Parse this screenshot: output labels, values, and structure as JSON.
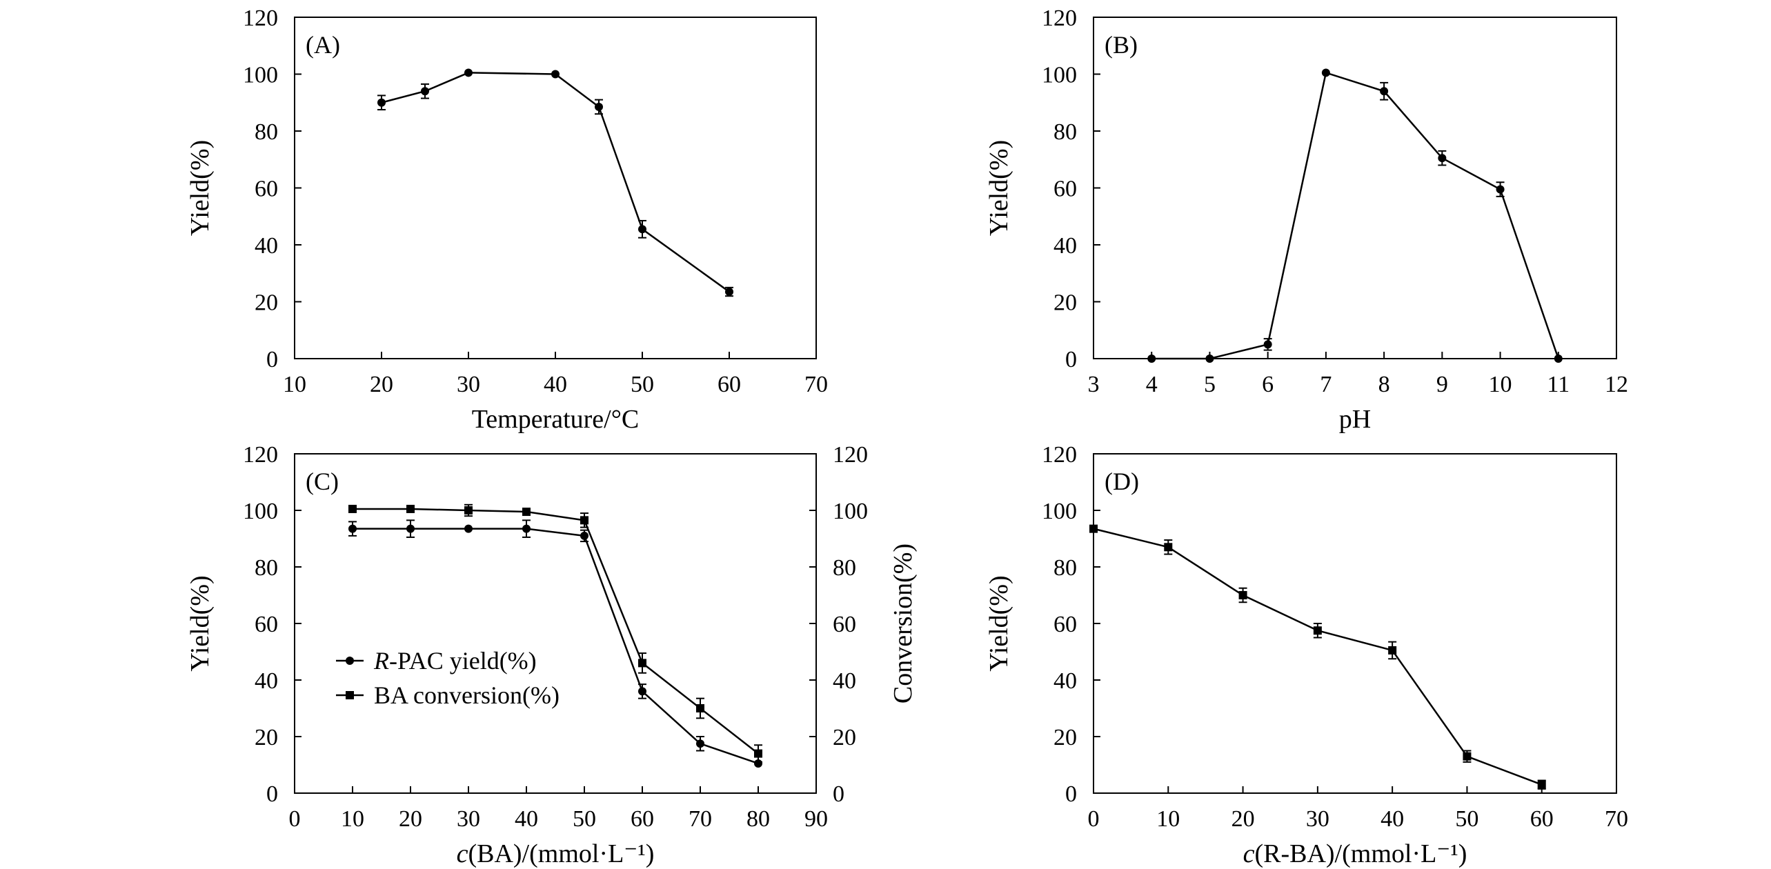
{
  "chart_data": [
    {
      "type": "line",
      "panel": "(A)",
      "xlabel": "Temperature/°C",
      "ylabel": "Yield(%)",
      "xlim": [
        10,
        70
      ],
      "ylim": [
        0,
        120
      ],
      "xticks": [
        10,
        20,
        30,
        40,
        50,
        60,
        70
      ],
      "yticks": [
        0,
        20,
        40,
        60,
        80,
        100,
        120
      ],
      "series": [
        {
          "name": "Yield",
          "marker": "circle",
          "x": [
            20,
            25,
            30,
            40,
            45,
            50,
            60
          ],
          "y": [
            90,
            94,
            100.5,
            100,
            88.5,
            45.5,
            23.5
          ],
          "err": [
            2.5,
            2.5,
            0,
            0,
            2.5,
            3,
            1.5
          ]
        }
      ]
    },
    {
      "type": "line",
      "panel": "(B)",
      "xlabel": "pH",
      "ylabel": "Yield(%)",
      "xlim": [
        3,
        12
      ],
      "ylim": [
        0,
        120
      ],
      "xticks": [
        3,
        4,
        5,
        6,
        7,
        8,
        9,
        10,
        11,
        12
      ],
      "yticks": [
        0,
        20,
        40,
        60,
        80,
        100,
        120
      ],
      "series": [
        {
          "name": "Yield",
          "marker": "circle",
          "x": [
            4,
            5,
            6,
            7,
            8,
            9,
            10,
            11
          ],
          "y": [
            0,
            0,
            5,
            100.5,
            94,
            70.5,
            59.5,
            0
          ],
          "err": [
            0,
            0,
            2,
            0,
            3,
            2.5,
            2.5,
            0
          ]
        }
      ]
    },
    {
      "type": "line",
      "panel": "(C)",
      "xlabel_italic": "c",
      "xlabel": "(BA)/(mmol·L⁻¹)",
      "ylabel": "Yield(%)",
      "y2label": "Conversion(%)",
      "xlim": [
        0,
        90
      ],
      "ylim": [
        0,
        120
      ],
      "y2lim": [
        0,
        120
      ],
      "xticks": [
        0,
        10,
        20,
        30,
        40,
        50,
        60,
        70,
        80,
        90
      ],
      "yticks": [
        0,
        20,
        40,
        60,
        80,
        100,
        120
      ],
      "y2ticks": [
        0,
        20,
        40,
        60,
        80,
        100,
        120
      ],
      "legend_position": "center-left",
      "series": [
        {
          "name": "R-PAC yield(%)",
          "name_italic": "R",
          "name_rest": "-PAC yield(%)",
          "marker": "circle",
          "x": [
            10,
            20,
            30,
            40,
            50,
            60,
            70,
            80
          ],
          "y": [
            93.5,
            93.5,
            93.5,
            93.5,
            91,
            36,
            17.5,
            10.5
          ],
          "err": [
            2.5,
            3,
            0,
            3,
            2,
            2.5,
            2.5,
            0
          ]
        },
        {
          "name": "BA conversion(%)",
          "name_italic": "",
          "name_rest": "BA conversion(%)",
          "marker": "square",
          "x": [
            10,
            20,
            30,
            40,
            50,
            60,
            70,
            80
          ],
          "y": [
            100.5,
            100.5,
            100,
            99.5,
            96.5,
            46,
            30,
            14
          ],
          "err": [
            0,
            0,
            2,
            0,
            2.5,
            3.5,
            3.5,
            3
          ]
        }
      ]
    },
    {
      "type": "line",
      "panel": "(D)",
      "xlabel_italic": "c",
      "xlabel": "(R-BA)/(mmol·L⁻¹)",
      "ylabel": "Yield(%)",
      "xlim": [
        0,
        70
      ],
      "ylim": [
        0,
        120
      ],
      "xticks": [
        0,
        10,
        20,
        30,
        40,
        50,
        60,
        70
      ],
      "yticks": [
        0,
        20,
        40,
        60,
        80,
        100,
        120
      ],
      "series": [
        {
          "name": "Yield",
          "marker": "square",
          "x": [
            0,
            10,
            20,
            30,
            40,
            50,
            60
          ],
          "y": [
            93.5,
            87,
            70,
            57.5,
            50.5,
            13,
            3
          ],
          "err": [
            0,
            2.5,
            2.5,
            2.5,
            3,
            2,
            1.5
          ]
        }
      ]
    }
  ]
}
